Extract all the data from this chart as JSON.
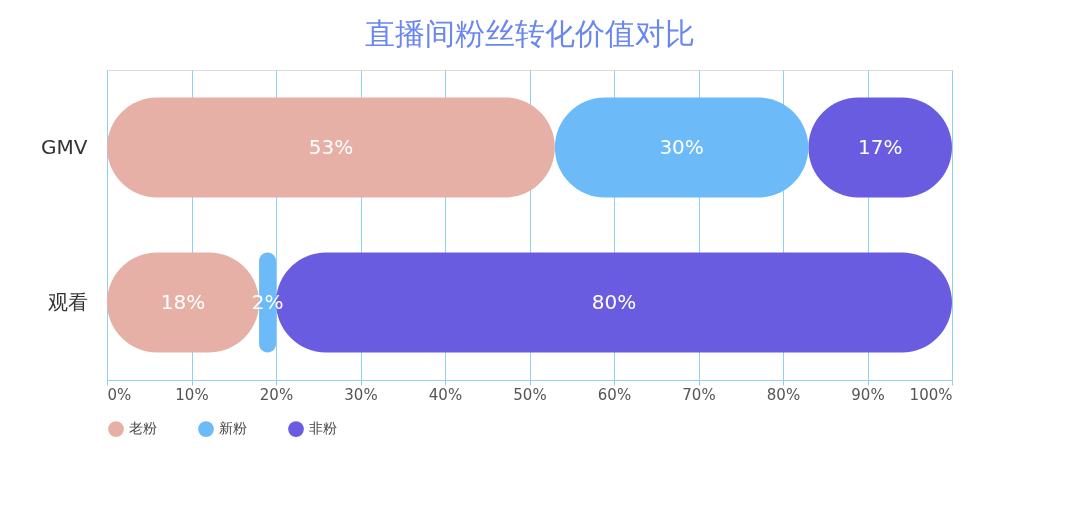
{
  "chart_data": {
    "type": "bar",
    "orientation": "horizontal",
    "stacked": true,
    "title": "直播间粉丝转化价值对比",
    "categories": [
      "GMV",
      "观看"
    ],
    "series": [
      {
        "name": "老粉",
        "color": "#e6b0a6",
        "values": [
          53,
          18
        ],
        "value_labels": [
          "53%",
          "18%"
        ]
      },
      {
        "name": "新粉",
        "color": "#6cbaf8",
        "values": [
          30,
          2
        ],
        "value_labels": [
          "30%",
          "2%"
        ]
      },
      {
        "name": "非粉",
        "color": "#6a5ce0",
        "values": [
          17,
          80
        ],
        "value_labels": [
          "17%",
          "80%"
        ]
      }
    ],
    "xlim": [
      0,
      100
    ],
    "xticks": [
      {
        "value": 0,
        "label": "0%"
      },
      {
        "value": 10,
        "label": "10%"
      },
      {
        "value": 20,
        "label": "20%"
      },
      {
        "value": 30,
        "label": "30%"
      },
      {
        "value": 40,
        "label": "40%"
      },
      {
        "value": 50,
        "label": "50%"
      },
      {
        "value": 60,
        "label": "60%"
      },
      {
        "value": 70,
        "label": "70%"
      },
      {
        "value": 80,
        "label": "80%"
      },
      {
        "value": 90,
        "label": "90%"
      },
      {
        "value": 100,
        "label": "100%"
      }
    ],
    "grid": "x",
    "legend": "bottom"
  }
}
